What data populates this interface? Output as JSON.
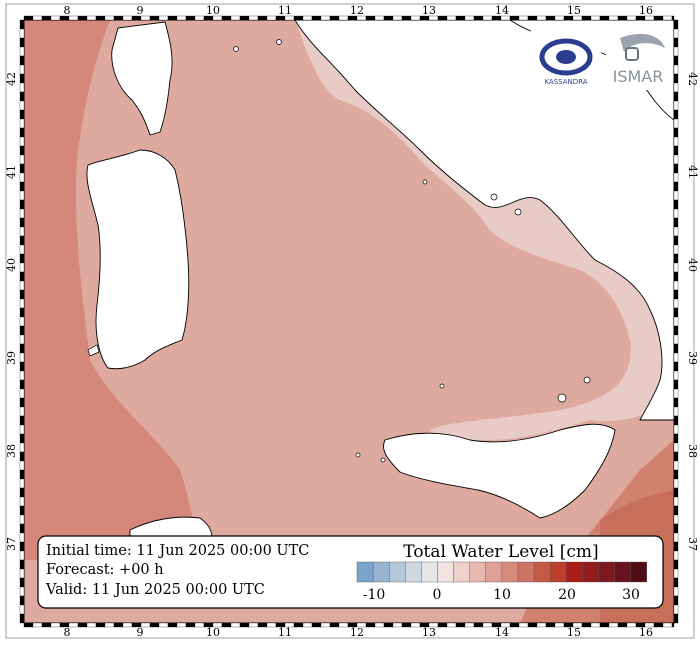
{
  "map": {
    "lon_ticks": [
      "8",
      "9",
      "10",
      "11",
      "12",
      "13",
      "14",
      "15",
      "16"
    ],
    "lat_ticks": [
      "42",
      "41",
      "40",
      "39",
      "38",
      "37"
    ]
  },
  "info": {
    "initial_time": "Initial time: 11 Jun 2025 00:00 UTC",
    "forecast": "Forecast: +00 h",
    "valid": "Valid: 11 Jun 2025 00:00 UTC"
  },
  "legend": {
    "title": "Total Water Level [cm]",
    "ticks": [
      "-10",
      "0",
      "10",
      "20",
      "30"
    ],
    "colors": [
      "#7aa4c9",
      "#97b5d2",
      "#b3c6da",
      "#cfd7e1",
      "#e6e6e8",
      "#f1e4e3",
      "#eed0cc",
      "#e6b8b1",
      "#dea197",
      "#d78b7d",
      "#cf7363",
      "#c65a47",
      "#bc3f2c",
      "#a91c18",
      "#951a1d",
      "#7f1620",
      "#681220",
      "#4e0d18"
    ]
  },
  "logos": {
    "left_text": "KASSANDRA",
    "right_text": "ISMAR"
  }
}
